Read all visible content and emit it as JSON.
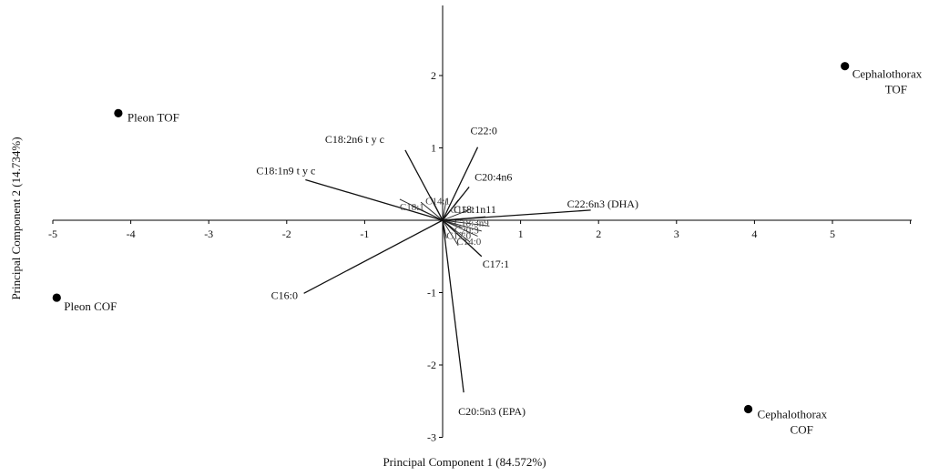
{
  "chart_data": {
    "type": "scatter",
    "subtype": "PCA biplot",
    "xlabel": "Principal Component 1 (84.572%)",
    "ylabel": "Principal Component 2 (14.734%)",
    "xlim": [
      -5,
      6
    ],
    "ylim": [
      -3,
      3
    ],
    "x_ticks": [
      "-5",
      "-4",
      "-3",
      "-2",
      "-1",
      "1",
      "2",
      "3",
      "4",
      "5"
    ],
    "y_ticks": [
      "-3",
      "-2",
      "-1",
      "1",
      "2"
    ],
    "grid": false,
    "legend": "none",
    "colors": {
      "axis": "#000000",
      "point": "#000000",
      "vector": "#111111"
    },
    "scores": [
      {
        "label": "Pleon TOF",
        "x": -4.16,
        "y": 1.48
      },
      {
        "label": "Pleon COF",
        "x": -4.95,
        "y": -1.07
      },
      {
        "label": "Cephalothorax TOF",
        "x": 5.16,
        "y": 2.13
      },
      {
        "label": "Cephalothorax COF",
        "x": 3.92,
        "y": -2.61
      }
    ],
    "loadings": [
      {
        "label": "C22:0",
        "x": 0.45,
        "y": 1.01
      },
      {
        "label": "C18:2n6 t y c",
        "x": -0.48,
        "y": 0.97
      },
      {
        "label": "C18:1n9 t y c",
        "x": -1.76,
        "y": 0.56
      },
      {
        "label": "C20:4n6",
        "x": 0.34,
        "y": 0.46
      },
      {
        "label": "C22:6n3 (DHA)",
        "x": 1.9,
        "y": 0.14
      },
      {
        "label": "C16:0",
        "x": -1.78,
        "y": -1.01
      },
      {
        "label": "C20:5n3 (EPA)",
        "x": 0.27,
        "y": -2.38
      },
      {
        "label": "C17:1",
        "x": 0.5,
        "y": -0.5
      }
    ],
    "minor_loadings": [
      {
        "x": -0.55,
        "y": 0.29
      },
      {
        "x": -0.4,
        "y": 0.2
      },
      {
        "x": -0.28,
        "y": 0.25
      },
      {
        "x": -0.15,
        "y": 0.32
      },
      {
        "x": 0.05,
        "y": 0.3
      },
      {
        "x": 0.2,
        "y": 0.28
      },
      {
        "x": 0.35,
        "y": 0.15
      },
      {
        "x": 0.55,
        "y": 0.05
      },
      {
        "x": 0.6,
        "y": -0.08
      },
      {
        "x": 0.5,
        "y": -0.15
      },
      {
        "x": 0.45,
        "y": -0.22
      },
      {
        "x": 0.35,
        "y": -0.3
      },
      {
        "x": 0.2,
        "y": -0.35
      },
      {
        "x": 0.05,
        "y": -0.25
      },
      {
        "x": 0.25,
        "y": -0.1
      }
    ],
    "crowded_labels": [
      {
        "text": "C18:1n11",
        "x": 0.14,
        "y": 0.1,
        "cls": "loading-label"
      },
      {
        "text": "C15:1",
        "x": 0.1,
        "y": 0.1,
        "cls": "crowd-label"
      },
      {
        "text": "C18:1",
        "x": -0.55,
        "y": 0.14,
        "cls": "crowd-label"
      },
      {
        "text": "C14:1",
        "x": -0.22,
        "y": 0.22,
        "cls": "crowd-label"
      },
      {
        "text": "C18:3n9",
        "x": 0.15,
        "y": -0.08,
        "cls": "crowd-label"
      },
      {
        "text": "C20:3",
        "x": 0.15,
        "y": -0.18,
        "cls": "crowd-label"
      },
      {
        "text": "C14:0",
        "x": 0.18,
        "y": -0.34,
        "cls": "crowd-label"
      },
      {
        "text": "C12:0",
        "x": 0.05,
        "y": -0.26,
        "cls": "crowd-label"
      }
    ]
  }
}
